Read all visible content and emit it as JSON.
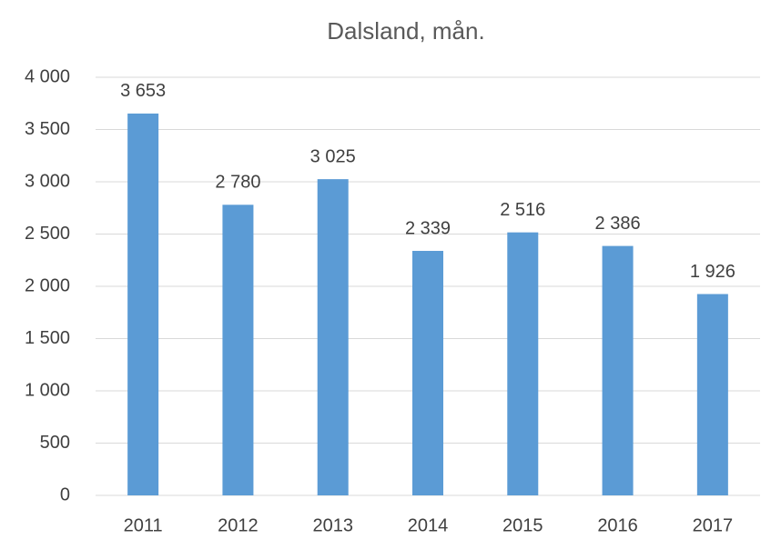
{
  "chart_data": {
    "type": "bar",
    "title": "Dalsland, mån.",
    "categories": [
      "2011",
      "2012",
      "2013",
      "2014",
      "2015",
      "2016",
      "2017"
    ],
    "values": [
      3653,
      2780,
      3025,
      2339,
      2516,
      2386,
      1926
    ],
    "value_labels": [
      "3 653",
      "2 780",
      "3 025",
      "2 339",
      "2 516",
      "2 386",
      "1 926"
    ],
    "color": "#5b9bd5",
    "ylim": [
      0,
      4000
    ],
    "yticks": [
      0,
      500,
      {
        "value": 1000,
        "label": "1 000"
      },
      {
        "value": 1500,
        "label": "1 500"
      },
      {
        "value": 2000,
        "label": "2 000"
      },
      {
        "value": 2500,
        "label": "2 500"
      },
      {
        "value": 3000,
        "label": "3 000"
      },
      {
        "value": 3500,
        "label": "3 500"
      },
      {
        "value": 4000,
        "label": "4 000"
      }
    ],
    "grid": true
  }
}
